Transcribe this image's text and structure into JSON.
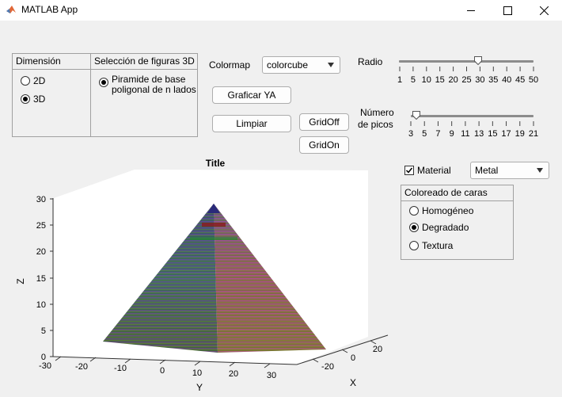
{
  "window": {
    "title": "MATLAB App",
    "minimize": "—",
    "maximize": "☐",
    "close": "✕"
  },
  "dimension_panel": {
    "title": "Dimensión",
    "options": [
      "2D",
      "3D"
    ],
    "selected": "3D"
  },
  "figures_panel": {
    "title": "Selección de figuras 3D",
    "option_line1": "Piramide de base",
    "option_line2": "poligonal de n lados"
  },
  "colormap": {
    "label": "Colormap",
    "value": "colorcube"
  },
  "buttons": {
    "graficar": "Graficar YA",
    "limpiar": "Limpiar",
    "gridoff": "GridOff",
    "gridon": "GridOn"
  },
  "radio_slider": {
    "label": "Radio",
    "ticks": [
      "1",
      "5",
      "10",
      "15",
      "20",
      "25",
      "30",
      "35",
      "40",
      "45",
      "50"
    ],
    "value": 30
  },
  "picos_slider": {
    "label_line1": "Número",
    "label_line2": "de picos",
    "ticks": [
      "3",
      "5",
      "7",
      "9",
      "11",
      "13",
      "15",
      "17",
      "19",
      "21"
    ],
    "value": 4
  },
  "material": {
    "label": "Material",
    "checked": true,
    "value": "Metal"
  },
  "coloreado_panel": {
    "title": "Coloreado de caras",
    "options": [
      "Homogéneo",
      "Degradado",
      "Textura"
    ],
    "selected": "Degradado"
  },
  "plot": {
    "title": "Title",
    "z_label": "Z",
    "y_label": "Y",
    "x_label": "X",
    "z_ticks": [
      "0",
      "5",
      "10",
      "15",
      "20",
      "25",
      "30"
    ],
    "y_ticks": [
      "-30",
      "-20",
      "-10",
      "0",
      "10",
      "20",
      "30"
    ],
    "x_ticks": [
      "-20",
      "0",
      "20"
    ]
  }
}
